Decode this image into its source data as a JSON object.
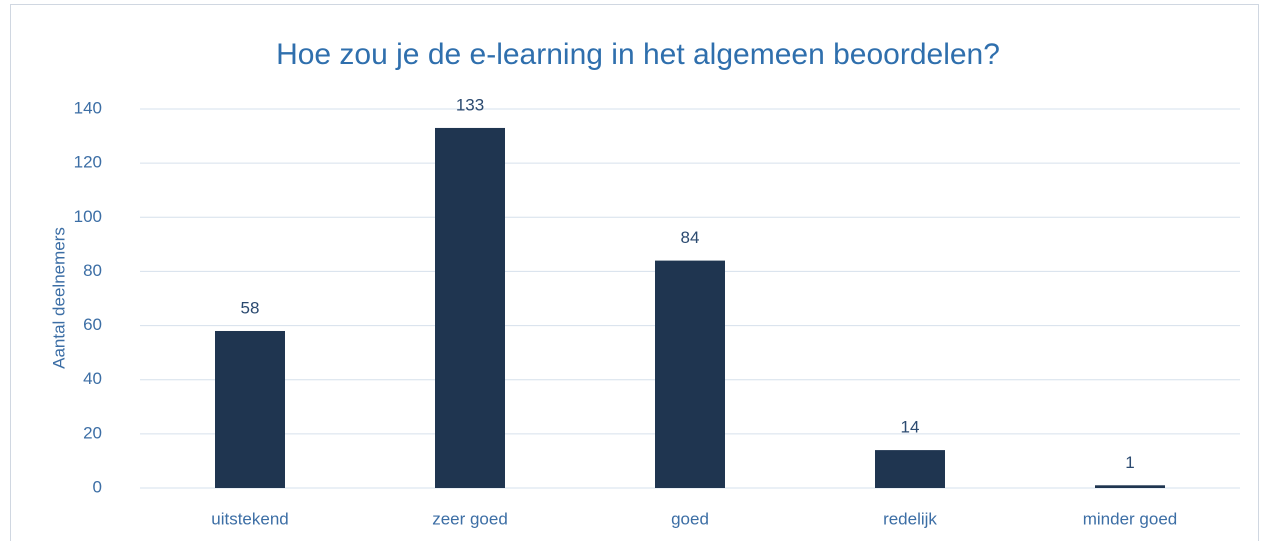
{
  "chart_data": {
    "type": "bar",
    "title": "Hoe zou je de e-learning in het algemeen beoordelen?",
    "y_label": "Aantal deelnemers",
    "categories": [
      "uitstekend",
      "zeer goed",
      "goed",
      "redelijk",
      "minder goed"
    ],
    "values": [
      58,
      133,
      84,
      14,
      1
    ],
    "color": "#1f3550",
    "ylim": [
      0,
      140
    ],
    "yticks": [
      0,
      20,
      40,
      60,
      80,
      100,
      120,
      140
    ],
    "grid": true
  }
}
